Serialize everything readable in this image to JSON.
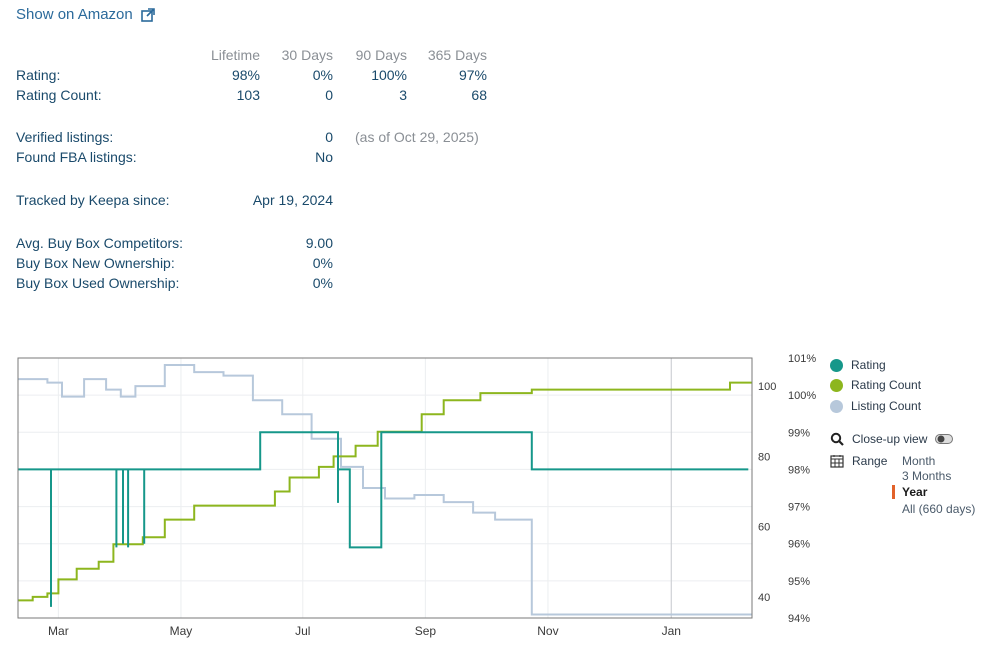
{
  "header": {
    "amazon_link_label": "Show on Amazon"
  },
  "stats": {
    "col_headers": [
      "Lifetime",
      "30 Days",
      "90 Days",
      "365 Days"
    ],
    "rating": {
      "label": "Rating:",
      "values": [
        "98%",
        "0%",
        "100%",
        "97%"
      ]
    },
    "rating_count": {
      "label": "Rating Count:",
      "values": [
        "103",
        "0",
        "3",
        "68"
      ]
    },
    "verified_listings": {
      "label": "Verified listings:",
      "value": "0",
      "note": "(as of Oct 29, 2025)"
    },
    "found_fba": {
      "label": "Found FBA listings:",
      "value": "No"
    },
    "tracked_since": {
      "label": "Tracked by Keepa since:",
      "value": "Apr 19, 2024"
    },
    "avg_competitors": {
      "label": "Avg. Buy Box Competitors:",
      "value": "9.00"
    },
    "new_ownership": {
      "label": "Buy Box New Ownership:",
      "value": "0%"
    },
    "used_ownership": {
      "label": "Buy Box Used Ownership:",
      "value": "0%"
    }
  },
  "legend": {
    "items": [
      {
        "label": "Rating",
        "color": "#16978a"
      },
      {
        "label": "Rating Count",
        "color": "#8db61e"
      },
      {
        "label": "Listing Count",
        "color": "#b7c8db"
      }
    ],
    "closeup_label": "Close-up view",
    "range_label": "Range",
    "range_options": [
      "Month",
      "3 Months",
      "Year",
      "All (660 days)"
    ],
    "range_selected": "Year"
  },
  "chart_data": {
    "type": "line",
    "x_ticks": [
      "Mar",
      "May",
      "Jul",
      "Sep",
      "Nov",
      "Jan"
    ],
    "y_left": {
      "ticks": [
        40,
        60,
        80,
        100
      ],
      "range": [
        34,
        108
      ]
    },
    "y_right": {
      "ticks": [
        "94%",
        "95%",
        "96%",
        "97%",
        "98%",
        "99%",
        "100%",
        "101%"
      ],
      "range": [
        94,
        101
      ]
    },
    "series": [
      {
        "name": "Rating",
        "axis": "right",
        "color": "#16978a",
        "points": [
          [
            0,
            98
          ],
          [
            0.045,
            98
          ],
          [
            0.045,
            94.3
          ],
          [
            0.045,
            98
          ],
          [
            0.134,
            98
          ],
          [
            0.134,
            95.9
          ],
          [
            0.134,
            98
          ],
          [
            0.143,
            98
          ],
          [
            0.143,
            96
          ],
          [
            0.143,
            98
          ],
          [
            0.15,
            98
          ],
          [
            0.15,
            95.9
          ],
          [
            0.15,
            98
          ],
          [
            0.172,
            98
          ],
          [
            0.172,
            96
          ],
          [
            0.172,
            98
          ],
          [
            0.33,
            98
          ],
          [
            0.33,
            99
          ],
          [
            0.436,
            99
          ],
          [
            0.436,
            97.1
          ],
          [
            0.436,
            98
          ],
          [
            0.452,
            98
          ],
          [
            0.452,
            95.9
          ],
          [
            0.495,
            95.9
          ],
          [
            0.495,
            99
          ],
          [
            0.7,
            99
          ],
          [
            0.7,
            98
          ],
          [
            0.995,
            98
          ]
        ]
      },
      {
        "name": "Rating Count",
        "axis": "left",
        "color": "#8db61e",
        "points": [
          [
            0,
            39
          ],
          [
            0.02,
            40
          ],
          [
            0.04,
            41
          ],
          [
            0.055,
            45
          ],
          [
            0.08,
            48
          ],
          [
            0.11,
            50
          ],
          [
            0.13,
            55
          ],
          [
            0.17,
            57
          ],
          [
            0.2,
            62
          ],
          [
            0.24,
            66
          ],
          [
            0.32,
            66
          ],
          [
            0.35,
            70
          ],
          [
            0.37,
            74
          ],
          [
            0.41,
            77
          ],
          [
            0.43,
            80
          ],
          [
            0.46,
            83
          ],
          [
            0.49,
            87
          ],
          [
            0.52,
            87
          ],
          [
            0.55,
            92
          ],
          [
            0.58,
            96
          ],
          [
            0.63,
            98
          ],
          [
            0.7,
            99
          ],
          [
            0.96,
            99
          ],
          [
            0.97,
            101
          ],
          [
            1,
            101
          ]
        ]
      },
      {
        "name": "Listing Count",
        "axis": "left",
        "color": "#b7c8db",
        "points": [
          [
            0,
            102
          ],
          [
            0.04,
            101
          ],
          [
            0.06,
            97
          ],
          [
            0.09,
            102
          ],
          [
            0.12,
            99
          ],
          [
            0.14,
            97
          ],
          [
            0.16,
            100
          ],
          [
            0.2,
            106
          ],
          [
            0.24,
            104
          ],
          [
            0.28,
            103
          ],
          [
            0.32,
            96
          ],
          [
            0.36,
            92
          ],
          [
            0.4,
            85
          ],
          [
            0.44,
            77
          ],
          [
            0.47,
            71
          ],
          [
            0.5,
            68
          ],
          [
            0.54,
            69
          ],
          [
            0.58,
            67
          ],
          [
            0.62,
            64
          ],
          [
            0.65,
            62
          ],
          [
            0.7,
            60
          ],
          [
            0.7,
            35
          ],
          [
            1,
            35
          ]
        ]
      }
    ],
    "x_labels": [
      "Mar",
      "May",
      "Jul",
      "Sep",
      "Nov",
      "Jan"
    ]
  }
}
